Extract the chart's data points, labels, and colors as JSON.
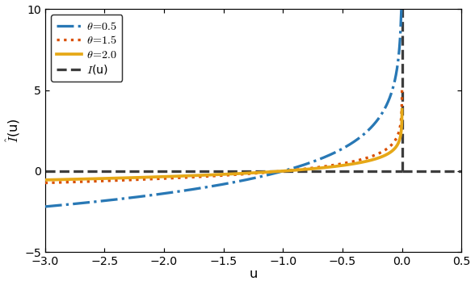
{
  "xlim": [
    -3,
    0.5
  ],
  "ylim": [
    -5,
    10
  ],
  "xticks": [
    -3,
    -2.5,
    -2,
    -1.5,
    -1,
    -0.5,
    0,
    0.5
  ],
  "yticks": [
    -5,
    0,
    5,
    10
  ],
  "xlabel": "u",
  "ylabel": "$\\hat{I}$(u)",
  "thetas": [
    0.5,
    1.5,
    2.0
  ],
  "theta_colors": [
    "#2878b5",
    "#d94f00",
    "#e6a817"
  ],
  "theta_linestyles": [
    "dashdot",
    "dotted",
    "solid"
  ],
  "theta_linewidths": [
    2.2,
    2.2,
    2.5
  ],
  "indicator_color": "#3d3d3d",
  "indicator_linewidth": 2.2,
  "clip_ymax": 10,
  "clip_ymin": -5,
  "figsize": [
    5.5,
    3.3
  ],
  "dpi": 107
}
